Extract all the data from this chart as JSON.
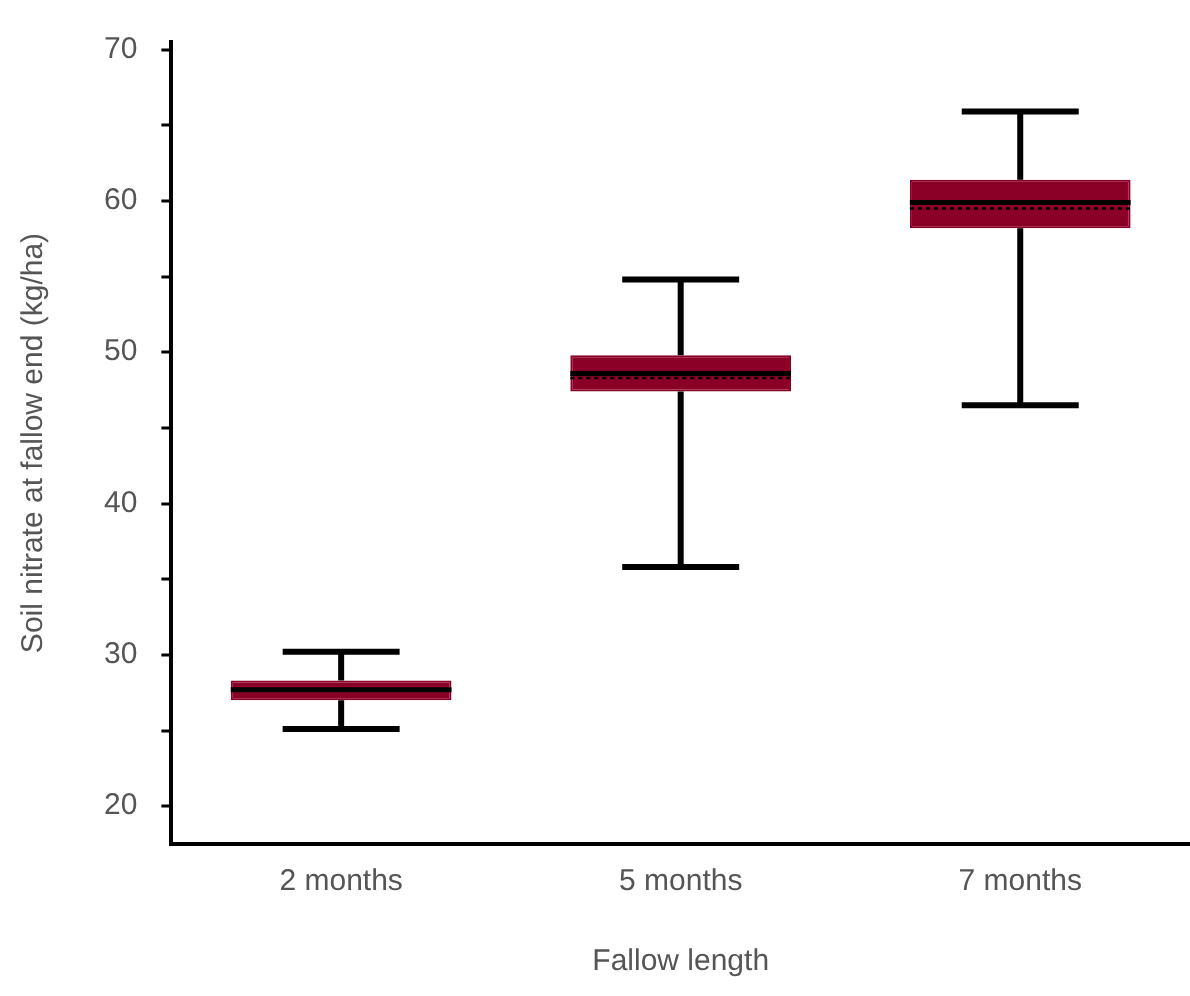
{
  "chart_data": {
    "type": "box",
    "xlabel": "Fallow length",
    "ylabel": "Soil nitrate at fallow end (kg/ha)",
    "categories": [
      "2 months",
      "5 months",
      "7 months"
    ],
    "color": "#8b0026",
    "boxes": [
      {
        "low": 25.1,
        "q1": 27.0,
        "median": 27.7,
        "q3": 28.3,
        "high": 30.2
      },
      {
        "low": 35.8,
        "q1": 47.4,
        "median": 48.6,
        "q3": 49.8,
        "high": 54.8,
        "mean": 48.3
      },
      {
        "low": 46.5,
        "q1": 58.2,
        "median": 59.9,
        "q3": 61.4,
        "high": 65.9,
        "mean": 59.5
      }
    ],
    "ylim": [
      17.5,
      70.5
    ],
    "yticks": [
      20,
      {
        "value": 25,
        "label": null
      },
      30,
      {
        "value": 35,
        "label": null
      },
      40,
      {
        "value": 45,
        "label": null
      },
      50,
      {
        "value": 55,
        "label": null
      },
      60,
      {
        "value": 65,
        "label": null
      },
      70
    ],
    "grid": false,
    "legend": false
  }
}
